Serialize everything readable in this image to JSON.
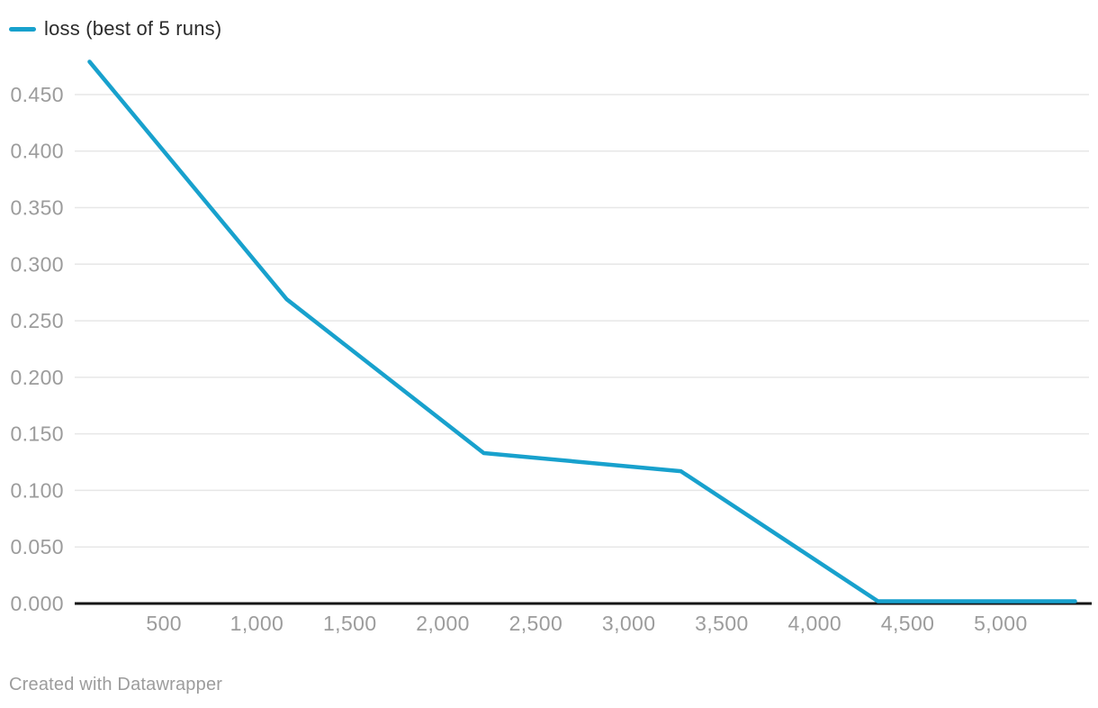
{
  "legend": {
    "label": "loss (best of 5 runs)"
  },
  "footer": {
    "text": "Created with Datawrapper"
  },
  "colors": {
    "line": "#18a1cd",
    "grid": "#e7e7e7",
    "axis": "#151515",
    "tick_label": "#9c9c9c",
    "legend_text": "#2b2b2b",
    "footer_text": "#9c9c9c",
    "background": "#ffffff"
  },
  "chart_data": {
    "type": "line",
    "title": "",
    "xlabel": "",
    "ylabel": "",
    "grid": "horizontal",
    "legend_position": "top-left",
    "xlim": [
      20,
      5475
    ],
    "ylim": [
      0,
      0.485
    ],
    "series": [
      {
        "name": "loss (best of 5 runs)",
        "points": [
          {
            "x": 100,
            "y": 0.479
          },
          {
            "x": 1160,
            "y": 0.269
          },
          {
            "x": 2220,
            "y": 0.133
          },
          {
            "x": 3280,
            "y": 0.117
          },
          {
            "x": 4340,
            "y": 0.002
          },
          {
            "x": 5400,
            "y": 0.002
          }
        ]
      }
    ],
    "x_ticks": [
      {
        "value": 500,
        "label": "500"
      },
      {
        "value": 1000,
        "label": "1,000"
      },
      {
        "value": 1500,
        "label": "1,500"
      },
      {
        "value": 2000,
        "label": "2,000"
      },
      {
        "value": 2500,
        "label": "2,500"
      },
      {
        "value": 3000,
        "label": "3,000"
      },
      {
        "value": 3500,
        "label": "3,500"
      },
      {
        "value": 4000,
        "label": "4,000"
      },
      {
        "value": 4500,
        "label": "4,500"
      },
      {
        "value": 5000,
        "label": "5,000"
      }
    ],
    "y_ticks": [
      {
        "value": 0.0,
        "label": "0.000"
      },
      {
        "value": 0.05,
        "label": "0.050"
      },
      {
        "value": 0.1,
        "label": "0.100"
      },
      {
        "value": 0.15,
        "label": "0.150"
      },
      {
        "value": 0.2,
        "label": "0.200"
      },
      {
        "value": 0.25,
        "label": "0.250"
      },
      {
        "value": 0.3,
        "label": "0.300"
      },
      {
        "value": 0.35,
        "label": "0.350"
      },
      {
        "value": 0.4,
        "label": "0.400"
      },
      {
        "value": 0.45,
        "label": "0.450"
      }
    ]
  }
}
